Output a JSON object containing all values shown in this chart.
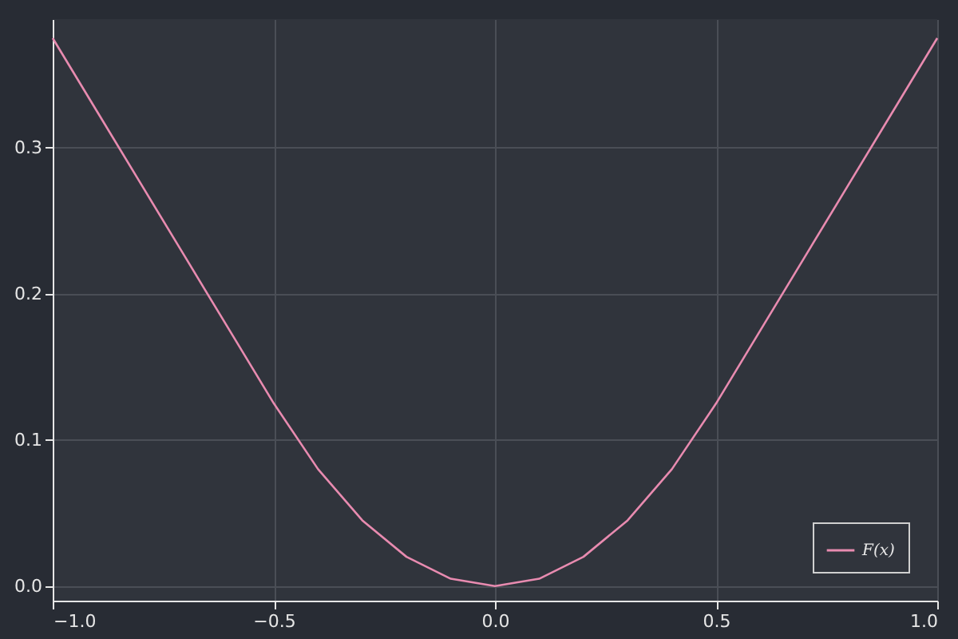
{
  "chart_data": {
    "type": "line",
    "x": [
      -1.0,
      -0.9,
      -0.8,
      -0.7,
      -0.6,
      -0.5,
      -0.4,
      -0.3,
      -0.2,
      -0.1,
      0.0,
      0.1,
      0.2,
      0.3,
      0.4,
      0.5,
      0.6,
      0.7,
      0.8,
      0.9,
      1.0
    ],
    "series": [
      {
        "name": "F(x)",
        "color": "#e88bb0",
        "values": [
          0.375,
          0.325,
          0.275,
          0.225,
          0.175,
          0.125,
          0.08,
          0.045,
          0.02,
          0.005,
          0.0,
          0.005,
          0.02,
          0.045,
          0.08,
          0.125,
          0.175,
          0.225,
          0.275,
          0.325,
          0.375
        ]
      }
    ],
    "xlim": [
      -1.0,
      1.0
    ],
    "ylim": [
      -0.01,
      0.388
    ],
    "xticks": [
      {
        "value": -1.0,
        "label": "−1.0"
      },
      {
        "value": -0.5,
        "label": "−0.5"
      },
      {
        "value": 0.0,
        "label": "0.0"
      },
      {
        "value": 0.5,
        "label": "0.5"
      },
      {
        "value": 1.0,
        "label": "1.0"
      }
    ],
    "yticks": [
      {
        "value": 0.0,
        "label": "0.0"
      },
      {
        "value": 0.1,
        "label": "0.1"
      },
      {
        "value": 0.2,
        "label": "0.2"
      },
      {
        "value": 0.3,
        "label": "0.3"
      }
    ],
    "grid": true,
    "legend": "bottom right",
    "line_style": "solid"
  }
}
